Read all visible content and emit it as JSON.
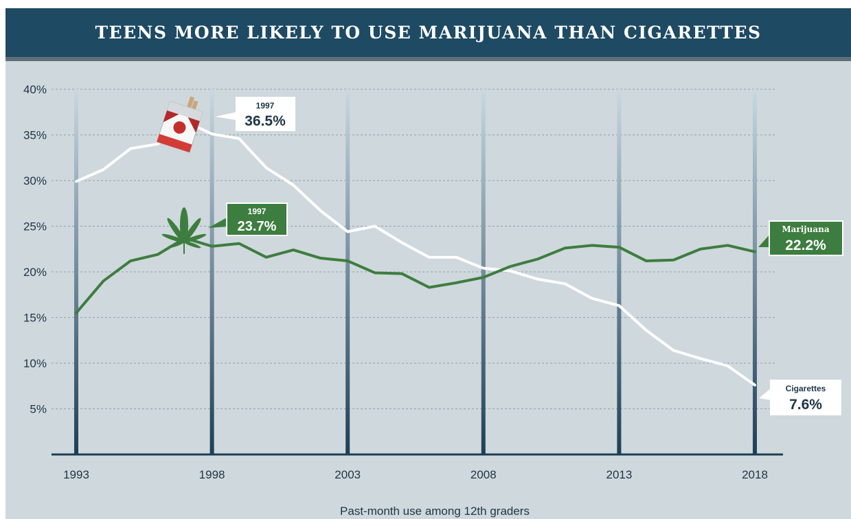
{
  "header": {
    "title": "TEENS MORE LIKELY TO USE MARIJUANA THAN CIGARETTES"
  },
  "chart_data": {
    "type": "line",
    "title": "TEENS MORE LIKELY TO USE MARIJUANA THAN CIGARETTES",
    "xlabel": "Past-month use among 12th graders",
    "ylabel": "",
    "xlim": [
      1993,
      2018
    ],
    "ylim": [
      0,
      40
    ],
    "x_ticks": [
      "1993",
      "1998",
      "2003",
      "2008",
      "2013",
      "2018"
    ],
    "y_ticks": [
      "5%",
      "10%",
      "15%",
      "20%",
      "25%",
      "30%",
      "35%",
      "40%"
    ],
    "grid": true,
    "x": [
      1993,
      1994,
      1995,
      1996,
      1997,
      1998,
      1999,
      2000,
      2001,
      2002,
      2003,
      2004,
      2005,
      2006,
      2007,
      2008,
      2009,
      2010,
      2011,
      2012,
      2013,
      2014,
      2015,
      2016,
      2017,
      2018
    ],
    "series": [
      {
        "name": "Cigarettes",
        "color": "#ffffff",
        "values": [
          29.9,
          31.2,
          33.5,
          34.0,
          36.5,
          35.1,
          34.6,
          31.4,
          29.5,
          26.7,
          24.4,
          25.0,
          23.2,
          21.6,
          21.6,
          20.4,
          20.1,
          19.2,
          18.7,
          17.1,
          16.3,
          13.6,
          11.4,
          10.5,
          9.7,
          7.6
        ]
      },
      {
        "name": "Marijuana",
        "color": "#3d7d3f",
        "values": [
          15.5,
          19.0,
          21.2,
          21.9,
          23.7,
          22.8,
          23.1,
          21.6,
          22.4,
          21.5,
          21.2,
          19.9,
          19.8,
          18.3,
          18.8,
          19.4,
          20.6,
          21.4,
          22.6,
          22.9,
          22.7,
          21.2,
          21.3,
          22.5,
          22.9,
          22.2
        ]
      }
    ],
    "annotations": [
      {
        "series": "Cigarettes",
        "year_label": "1997",
        "value_label": "36.5%"
      },
      {
        "series": "Marijuana",
        "year_label": "1997",
        "value_label": "23.7%"
      },
      {
        "series": "Marijuana",
        "end_label": "Marijuana",
        "value_label": "22.2%"
      },
      {
        "series": "Cigarettes",
        "end_label": "Cigarettes",
        "value_label": "7.6%"
      }
    ],
    "icons": [
      "cigarette-pack-icon",
      "cannabis-leaf-icon"
    ]
  }
}
